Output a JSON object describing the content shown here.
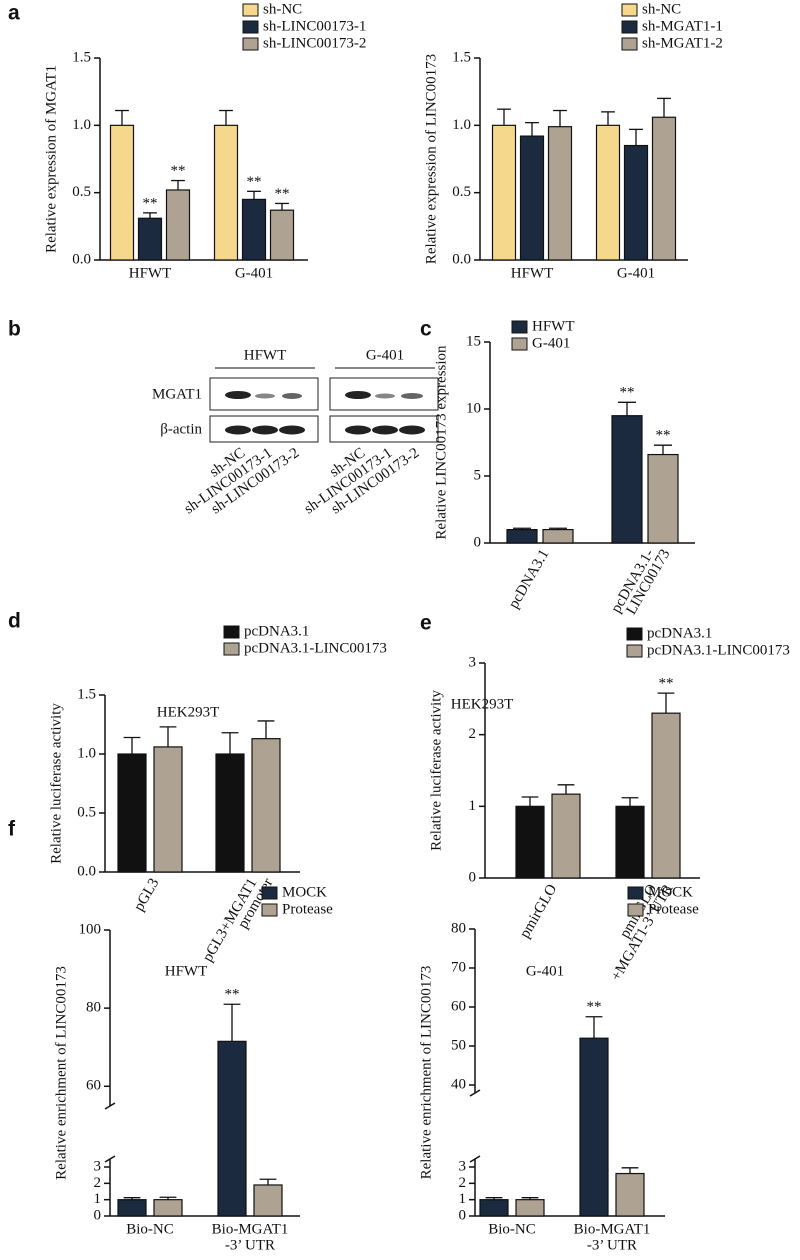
{
  "panel_labels": [
    "a",
    "b",
    "c",
    "d",
    "e",
    "f"
  ],
  "blot": {
    "groups": [
      "HFWT",
      "G-401"
    ],
    "rows": [
      "MGAT1",
      "β-actin"
    ],
    "lanes": [
      "sh-NC",
      "sh-LINC00173-1",
      "sh-LINC00173-2"
    ]
  },
  "chart_data": [
    {
      "type": "bar",
      "ylabel": "Relative expression of MGAT1",
      "categories": [
        [
          "HFWT"
        ],
        [
          "G-401"
        ]
      ],
      "ylim": [
        0,
        1.5
      ],
      "yticks": [
        {
          "value": 0,
          "label": "0.0"
        },
        0.5,
        {
          "value": 1,
          "label": "1.0"
        },
        1.5
      ],
      "series": [
        {
          "name": "sh-NC",
          "color": "#f6d88c",
          "values": [
            1.0,
            1.0
          ],
          "errors": [
            0.11,
            0.11
          ]
        },
        {
          "name": "sh-LINC00173-1",
          "color": "#1b2a3f",
          "values": [
            0.31,
            0.45
          ],
          "errors": [
            0.04,
            0.06
          ],
          "significance": [
            "**",
            "**"
          ]
        },
        {
          "name": "sh-LINC00173-2",
          "color": "#aea393",
          "values": [
            0.52,
            0.37
          ],
          "errors": [
            0.07,
            0.05
          ],
          "significance": [
            "**",
            "**"
          ]
        }
      ]
    },
    {
      "type": "bar",
      "ylabel": "Relative expression of LINC00173",
      "categories": [
        [
          "HFWT"
        ],
        [
          "G-401"
        ]
      ],
      "ylim": [
        0,
        1.5
      ],
      "yticks": [
        {
          "value": 0,
          "label": "0.0"
        },
        0.5,
        {
          "value": 1,
          "label": "1.0"
        },
        1.5
      ],
      "series": [
        {
          "name": "sh-NC",
          "color": "#f6d88c",
          "values": [
            1.0,
            1.0
          ],
          "errors": [
            0.12,
            0.1
          ]
        },
        {
          "name": "sh-MGAT1-1",
          "color": "#1b2a3f",
          "values": [
            0.92,
            0.85
          ],
          "errors": [
            0.1,
            0.12
          ]
        },
        {
          "name": "sh-MGAT1-2",
          "color": "#aea393",
          "values": [
            0.99,
            1.06
          ],
          "errors": [
            0.12,
            0.14
          ]
        }
      ]
    },
    {
      "type": "bar",
      "ylabel": "Relative LINC00173 expression",
      "categories": [
        [
          "pcDNA3.1"
        ],
        [
          "pcDNA3.1-",
          "LINC00173"
        ]
      ],
      "ylim": [
        0,
        15
      ],
      "yticks": [
        0,
        5,
        10,
        15
      ],
      "series": [
        {
          "name": "HFWT",
          "color": "#1b2a3f",
          "values": [
            1.0,
            9.5
          ],
          "errors": [
            0.1,
            1.0
          ],
          "significance": [
            null,
            "**"
          ]
        },
        {
          "name": "G-401",
          "color": "#aea393",
          "values": [
            1.0,
            6.6
          ],
          "errors": [
            0.1,
            0.7
          ],
          "significance": [
            null,
            "**"
          ]
        }
      ]
    },
    {
      "type": "bar",
      "title": "HEK293T",
      "ylabel": "Relative luciferase activity",
      "categories": [
        [
          "pGL3"
        ],
        [
          "pGL3+MGAT1",
          "promoter"
        ]
      ],
      "ylim": [
        0,
        1.5
      ],
      "yticks": [
        {
          "value": 0,
          "label": "0.0"
        },
        0.5,
        {
          "value": 1,
          "label": "1.0"
        },
        1.5
      ],
      "series": [
        {
          "name": "pcDNA3.1",
          "color": "#111111",
          "values": [
            1.0,
            1.0
          ],
          "errors": [
            0.14,
            0.18
          ]
        },
        {
          "name": "pcDNA3.1-LINC00173",
          "color": "#aea393",
          "values": [
            1.06,
            1.13
          ],
          "errors": [
            0.17,
            0.15
          ]
        }
      ]
    },
    {
      "type": "bar",
      "title": "HEK293T",
      "ylabel": "Relative luciferase activity",
      "categories": [
        [
          "pmirGLO"
        ],
        [
          "pmirGLO",
          "+MGAT1-3’ UTR"
        ]
      ],
      "ylim": [
        0,
        3
      ],
      "yticks": [
        0,
        1,
        2,
        3
      ],
      "series": [
        {
          "name": "pcDNA3.1",
          "color": "#111111",
          "values": [
            1.0,
            1.0
          ],
          "errors": [
            0.13,
            0.12
          ]
        },
        {
          "name": "pcDNA3.1-LINC00173",
          "color": "#aea393",
          "values": [
            1.17,
            2.3
          ],
          "errors": [
            0.13,
            0.28
          ],
          "significance": [
            null,
            "**"
          ]
        }
      ]
    },
    {
      "type": "bar",
      "title": "HFWT",
      "ylabel": "Relative enrichment of LINC00173",
      "categories": [
        [
          "Bio-NC"
        ],
        [
          "Bio-MGAT1",
          "-3’ UTR"
        ]
      ],
      "ylim": [
        0,
        100
      ],
      "ybreak": [
        3,
        57
      ],
      "yticks": [
        0,
        1,
        2,
        3,
        60,
        80,
        100
      ],
      "series": [
        {
          "name": "MOCK",
          "color": "#1b2a3f",
          "values": [
            1.0,
            71.5
          ],
          "errors": [
            0.12,
            9.5
          ],
          "significance": [
            null,
            "**"
          ]
        },
        {
          "name": "Protease",
          "color": "#aea393",
          "values": [
            1.0,
            1.9
          ],
          "errors": [
            0.15,
            0.35
          ]
        }
      ]
    },
    {
      "type": "bar",
      "title": "G-401",
      "ylabel": "Relative enrichment of LINC00173",
      "categories": [
        [
          "Bio-NC"
        ],
        [
          "Bio-MGAT1",
          "-3’ UTR"
        ]
      ],
      "ylim": [
        0,
        80
      ],
      "ybreak": [
        3,
        40
      ],
      "yticks": [
        0,
        1,
        2,
        3,
        40,
        50,
        60,
        70,
        80
      ],
      "series": [
        {
          "name": "MOCK",
          "color": "#1b2a3f",
          "values": [
            1.0,
            52
          ],
          "errors": [
            0.12,
            5.5
          ],
          "significance": [
            null,
            "**"
          ]
        },
        {
          "name": "Protease",
          "color": "#aea393",
          "values": [
            1.0,
            2.6
          ],
          "errors": [
            0.12,
            0.35
          ]
        }
      ]
    }
  ]
}
